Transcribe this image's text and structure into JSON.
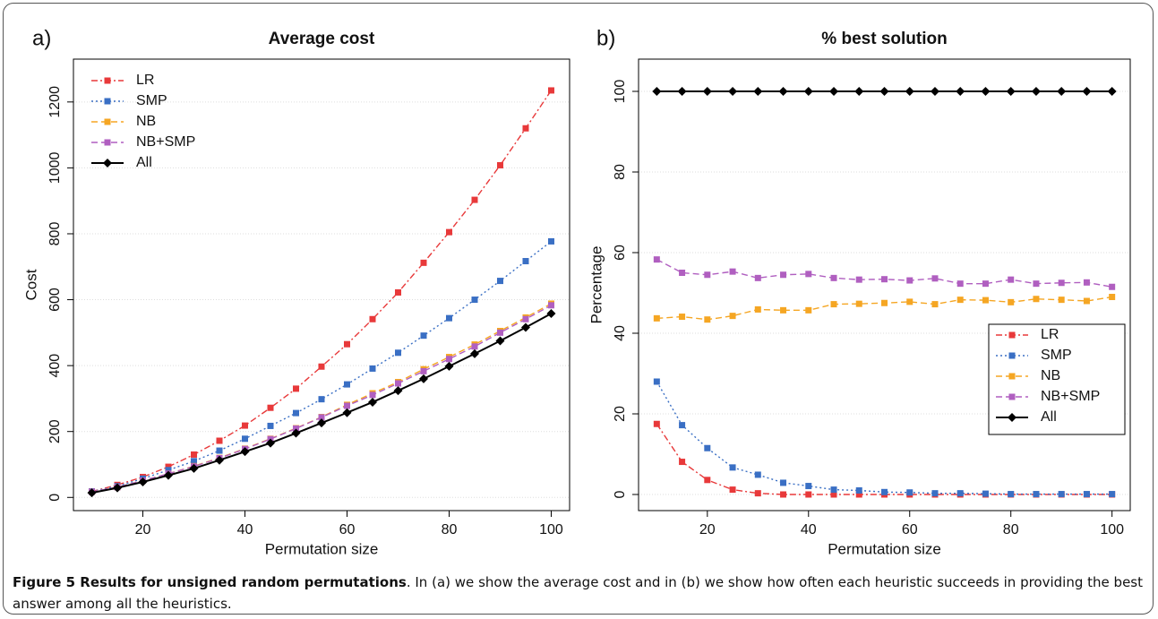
{
  "figure_caption": {
    "title": "Figure 5 Results for unsigned random permutations",
    "text": ". In (a) we show the average cost and in (b) we show how often each heuristic succeeds in providing the best answer among all the heuristics."
  },
  "chart_data": [
    {
      "type": "line",
      "panel_label": "a)",
      "title": "Average cost",
      "xlabel": "Permutation size",
      "ylabel": "Cost",
      "x": [
        10,
        15,
        20,
        25,
        30,
        35,
        40,
        45,
        50,
        55,
        60,
        65,
        70,
        75,
        80,
        85,
        90,
        95,
        100
      ],
      "xlim": [
        6.4,
        103.6
      ],
      "xticks": [
        20,
        40,
        60,
        80,
        100
      ],
      "ylim": [
        -40,
        1330
      ],
      "yticks": [
        0,
        200,
        400,
        600,
        800,
        1000,
        1200
      ],
      "grid": true,
      "legend": "topleft",
      "series": [
        {
          "name": "LR",
          "color": "#e8393a",
          "linestyle": "dashdot",
          "marker": "square",
          "values": [
            18,
            38,
            62,
            93,
            130,
            172,
            218,
            272,
            330,
            397,
            465,
            541,
            622,
            712,
            805,
            903,
            1008,
            1120,
            1235
          ]
        },
        {
          "name": "SMP",
          "color": "#3a6fc4",
          "linestyle": "dotted",
          "marker": "square",
          "values": [
            18,
            34,
            57,
            83,
            110,
            142,
            178,
            217,
            256,
            298,
            343,
            391,
            439,
            491,
            544,
            600,
            657,
            717,
            777
          ]
        },
        {
          "name": "NB",
          "color": "#f5a623",
          "linestyle": "dashed",
          "marker": "square",
          "values": [
            17,
            31,
            51,
            72,
            95,
            120,
            148,
            178,
            210,
            244,
            281,
            316,
            350,
            389,
            426,
            464,
            505,
            546,
            588
          ]
        },
        {
          "name": "NB+SMP",
          "color": "#b05fc0",
          "linestyle": "dashed",
          "marker": "square",
          "values": [
            17,
            31,
            51,
            72,
            94,
            119,
            147,
            177,
            209,
            243,
            278,
            311,
            346,
            383,
            420,
            458,
            500,
            541,
            583
          ]
        },
        {
          "name": "All",
          "color": "#000000",
          "linestyle": "solid",
          "marker": "diamond",
          "values": [
            14,
            29,
            47,
            67,
            88,
            113,
            139,
            165,
            195,
            226,
            257,
            289,
            324,
            360,
            398,
            436,
            475,
            516,
            558
          ]
        }
      ]
    },
    {
      "type": "line",
      "panel_label": "b)",
      "title": "% best solution",
      "xlabel": "Permutation size",
      "ylabel": "Percentage",
      "x": [
        10,
        15,
        20,
        25,
        30,
        35,
        40,
        45,
        50,
        55,
        60,
        65,
        70,
        75,
        80,
        85,
        90,
        95,
        100
      ],
      "xlim": [
        6.4,
        103.6
      ],
      "xticks": [
        20,
        40,
        60,
        80,
        100
      ],
      "ylim": [
        -4,
        108
      ],
      "yticks": [
        0,
        20,
        40,
        60,
        80,
        100
      ],
      "grid": true,
      "legend": "right",
      "series": [
        {
          "name": "LR",
          "color": "#e8393a",
          "linestyle": "dashdot",
          "marker": "square",
          "values": [
            17.5,
            8.1,
            3.6,
            1.2,
            0.3,
            0,
            0,
            0,
            0,
            0,
            0,
            0,
            0,
            0,
            0,
            0,
            0,
            0,
            0
          ]
        },
        {
          "name": "SMP",
          "color": "#3a6fc4",
          "linestyle": "dotted",
          "marker": "square",
          "values": [
            28,
            17.2,
            11.5,
            6.7,
            4.9,
            2.9,
            2.1,
            1.2,
            1.0,
            0.6,
            0.5,
            0.3,
            0.3,
            0.2,
            0.1,
            0.1,
            0.1,
            0.1,
            0.1
          ]
        },
        {
          "name": "NB",
          "color": "#f5a623",
          "linestyle": "dashed",
          "marker": "square",
          "values": [
            43.7,
            44.1,
            43.4,
            44.3,
            45.9,
            45.7,
            45.7,
            47.2,
            47.3,
            47.5,
            47.8,
            47.2,
            48.3,
            48.2,
            47.7,
            48.5,
            48.3,
            48.0,
            49.0
          ]
        },
        {
          "name": "NB+SMP",
          "color": "#b05fc0",
          "linestyle": "dashed",
          "marker": "square",
          "values": [
            58.3,
            55,
            54.5,
            55.3,
            53.7,
            54.5,
            54.7,
            53.7,
            53.3,
            53.4,
            53.1,
            53.6,
            52.3,
            52.3,
            53.3,
            52.3,
            52.5,
            52.6,
            51.5
          ]
        },
        {
          "name": "All",
          "color": "#000000",
          "linestyle": "solid",
          "marker": "diamond",
          "values": [
            100,
            100,
            100,
            100,
            100,
            100,
            100,
            100,
            100,
            100,
            100,
            100,
            100,
            100,
            100,
            100,
            100,
            100,
            100
          ]
        }
      ]
    }
  ]
}
